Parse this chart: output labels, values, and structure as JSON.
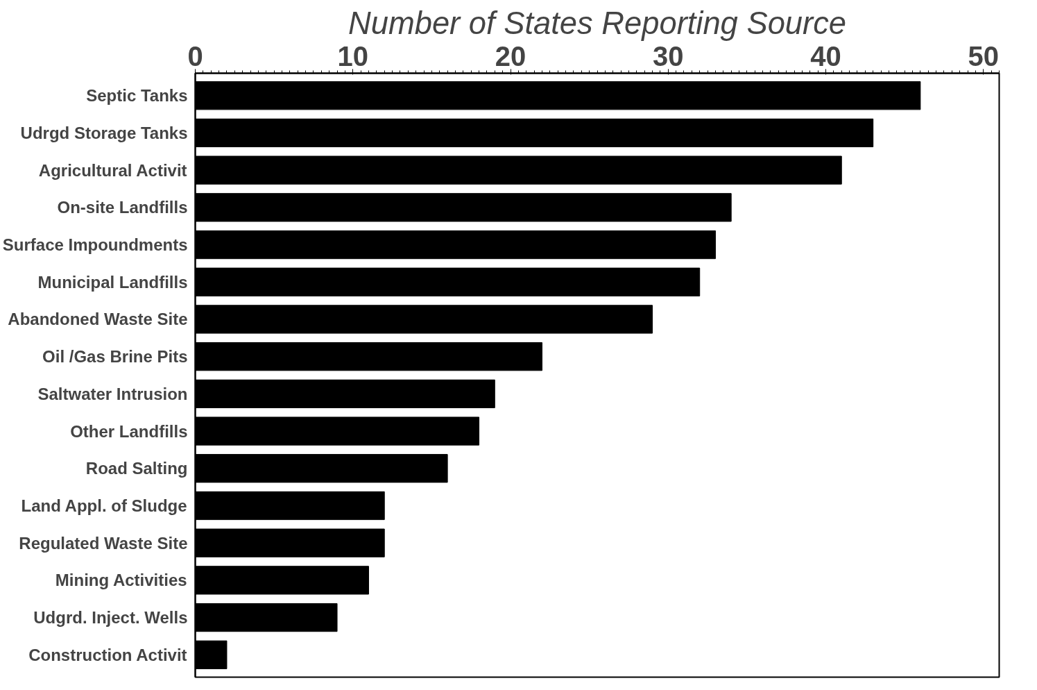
{
  "chart_data": {
    "type": "bar",
    "orientation": "horizontal",
    "title": "Number of States Reporting Source",
    "categories": [
      "Septic Tanks",
      "Udrgd Storage Tanks",
      "Agricultural Activit",
      "On-site Landfills",
      "Surface Impoundments",
      "Municipal Landfills",
      "Abandoned Waste Site",
      "Oil /Gas Brine Pits",
      "Saltwater Intrusion",
      "Other Landfills",
      "Road Salting",
      "Land Appl. of Sludge",
      "Regulated Waste Site",
      "Mining Activities",
      "Udgrd. Inject. Wells",
      "Construction Activit"
    ],
    "values": [
      46,
      43,
      41,
      34,
      33,
      32,
      29,
      22,
      19,
      18,
      16,
      12,
      12,
      11,
      9,
      2
    ],
    "color": "#000000",
    "xlim": [
      0,
      51
    ],
    "xticks": [
      0,
      10,
      20,
      30,
      40,
      50
    ],
    "grid": false
  }
}
